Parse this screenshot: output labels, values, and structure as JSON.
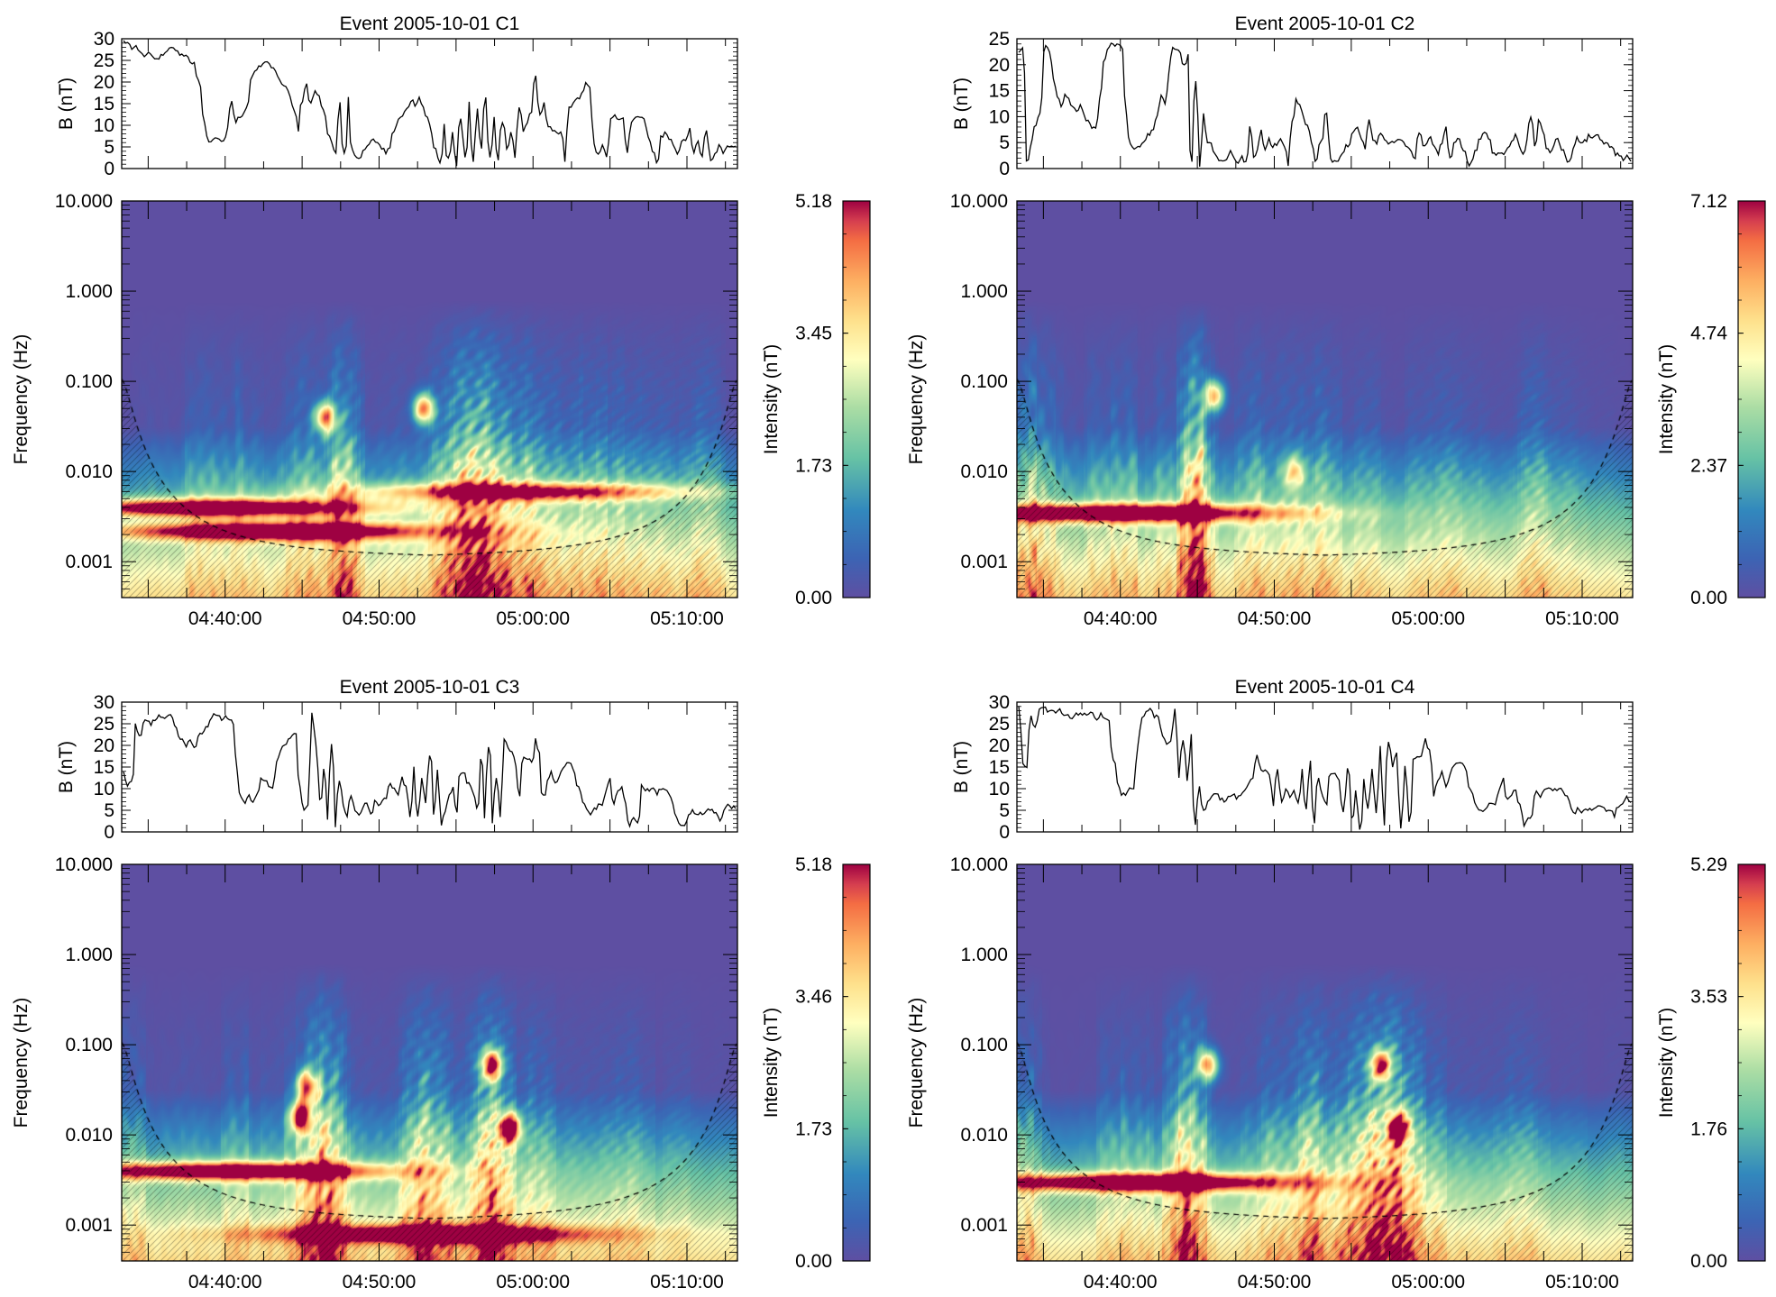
{
  "chart_data": [
    {
      "type": "line+heatmap",
      "id": "C1",
      "title": "Event 2005-10-01 C1",
      "line": {
        "ylabel": "B (nT)",
        "ylim": [
          0,
          30
        ],
        "yticks": [
          "0",
          "5",
          "10",
          "15",
          "20",
          "25",
          "30"
        ],
        "values": [
          29,
          29,
          28,
          28,
          27,
          26,
          27,
          26,
          25,
          26,
          27,
          28,
          28,
          27,
          26,
          26,
          25,
          24,
          20,
          12,
          7,
          6,
          7,
          7,
          6,
          10,
          15,
          11,
          12,
          13,
          15,
          22,
          23,
          24,
          25,
          24,
          23,
          21,
          20,
          19,
          17,
          13,
          9,
          16,
          20,
          15,
          18,
          17,
          13,
          8,
          6,
          4,
          15,
          3,
          16,
          4,
          2,
          3,
          5,
          6,
          7,
          6,
          5,
          4,
          5,
          9,
          11,
          12,
          14,
          16,
          15,
          16,
          14,
          12,
          8,
          4,
          1,
          10,
          2,
          8,
          1,
          12,
          3,
          16,
          2,
          14,
          5,
          16,
          3,
          12,
          2,
          10,
          5,
          8,
          2,
          14,
          8,
          10,
          13,
          22,
          12,
          15,
          10,
          9,
          8,
          8,
          2,
          14,
          15,
          16,
          17,
          20,
          19,
          6,
          3,
          5,
          3,
          11,
          12,
          11,
          12,
          4,
          11,
          12,
          12,
          11,
          7,
          4,
          1,
          7,
          8,
          7,
          5,
          3,
          6,
          7,
          9,
          4,
          6,
          3,
          9,
          2,
          3,
          5,
          4,
          5,
          5,
          5
        ],
        "xlim": [
          "04:33:00",
          "05:13:00"
        ]
      },
      "spectrogram": {
        "ylabel": "Frequency (Hz)",
        "yscale": "log",
        "ylim": [
          0.0004,
          10
        ],
        "yticks": [
          "10.000",
          "1.000",
          "0.100",
          "0.010",
          "0.001"
        ],
        "xticks": [
          "04:40:00",
          "04:50:00",
          "05:00:00",
          "05:10:00"
        ],
        "colorbar": {
          "label": "Intensity (nT)",
          "ticks": [
            "0.00",
            "1.73",
            "3.45",
            "5.18"
          ],
          "min": 0,
          "max": 5.18
        },
        "features": [
          {
            "t": 0.15,
            "f": 0.004,
            "intensity": 5.0,
            "desc": "strong band"
          },
          {
            "t": 0.25,
            "f": 0.0022,
            "intensity": 4.8,
            "desc": "strong band"
          },
          {
            "t": 0.65,
            "f": 0.006,
            "intensity": 3.8,
            "desc": "band"
          },
          {
            "t": 0.33,
            "f": 0.04,
            "intensity": 4.2,
            "desc": "hot spot"
          },
          {
            "t": 0.49,
            "f": 0.05,
            "intensity": 4.3,
            "desc": "hot spot"
          }
        ]
      }
    },
    {
      "type": "line+heatmap",
      "id": "C2",
      "title": "Event 2005-10-01 C2",
      "line": {
        "ylabel": "B (nT)",
        "ylim": [
          0,
          25
        ],
        "yticks": [
          "0",
          "5",
          "10",
          "15",
          "20",
          "25"
        ],
        "values": [
          22,
          23,
          1,
          4,
          8,
          10,
          14,
          24,
          23,
          17,
          14,
          12,
          14,
          13,
          12,
          11,
          12,
          10,
          9,
          8,
          8,
          14,
          20,
          23,
          24,
          24,
          24,
          23,
          10,
          5,
          4,
          4,
          5,
          6,
          7,
          8,
          10,
          14,
          13,
          18,
          23,
          23,
          22,
          20,
          22,
          1,
          17,
          0,
          11,
          5,
          5,
          3,
          2,
          1,
          2,
          3,
          2,
          1,
          2,
          1,
          8,
          2,
          4,
          7,
          3,
          6,
          4,
          5,
          6,
          4,
          1,
          9,
          13,
          12,
          10,
          8,
          5,
          1,
          4,
          6,
          11,
          2,
          1,
          2,
          3,
          4,
          5,
          7,
          8,
          6,
          4,
          9,
          6,
          5,
          7,
          6,
          5,
          5,
          5,
          6,
          5,
          4,
          3,
          2,
          7,
          4,
          5,
          6,
          4,
          3,
          5,
          8,
          2,
          5,
          6,
          4,
          3,
          1,
          2,
          4,
          6,
          7,
          6,
          3,
          3,
          3,
          3,
          4,
          5,
          7,
          4,
          3,
          5,
          10,
          4,
          9,
          8,
          4,
          3,
          5,
          6,
          4,
          2,
          1,
          4,
          6,
          5,
          5,
          6,
          6,
          7,
          6,
          5,
          5,
          4,
          3,
          3,
          2,
          2,
          2
        ],
        "xlim": [
          "04:33:00",
          "05:13:00"
        ]
      },
      "spectrogram": {
        "ylabel": "Frequency (Hz)",
        "yscale": "log",
        "ylim": [
          0.0004,
          10
        ],
        "yticks": [
          "10.000",
          "1.000",
          "0.100",
          "0.010",
          "0.001"
        ],
        "xticks": [
          "04:40:00",
          "04:50:00",
          "05:00:00",
          "05:10:00"
        ],
        "colorbar": {
          "label": "Intensity (nT)",
          "ticks": [
            "0.00",
            "2.37",
            "4.74",
            "7.12"
          ],
          "min": 0,
          "max": 7.12
        },
        "features": [
          {
            "t": 0.17,
            "f": 0.0035,
            "intensity": 7.0,
            "desc": "strong band"
          },
          {
            "t": 0.32,
            "f": 0.07,
            "intensity": 5.0,
            "desc": "hot spot"
          },
          {
            "t": 0.45,
            "f": 0.01,
            "intensity": 3.0,
            "desc": "patch"
          }
        ]
      }
    },
    {
      "type": "line+heatmap",
      "id": "C3",
      "title": "Event 2005-10-01 C3",
      "line": {
        "ylabel": "B (nT)",
        "ylim": [
          0,
          30
        ],
        "yticks": [
          "0",
          "5",
          "10",
          "15",
          "20",
          "25",
          "30"
        ],
        "values": [
          14,
          10,
          12,
          25,
          22,
          25,
          26,
          25,
          26,
          27,
          26,
          27,
          27,
          25,
          22,
          21,
          20,
          21,
          19,
          22,
          23,
          24,
          26,
          27,
          27,
          26,
          27,
          26,
          25,
          14,
          8,
          7,
          8,
          7,
          9,
          12,
          12,
          11,
          10,
          16,
          19,
          20,
          21,
          22,
          23,
          10,
          5,
          6,
          28,
          20,
          7,
          15,
          3,
          20,
          1,
          12,
          6,
          4,
          8,
          5,
          4,
          6,
          7,
          4,
          7,
          6,
          7,
          8,
          11,
          10,
          9,
          13,
          10,
          3,
          15,
          3,
          12,
          7,
          18,
          4,
          14,
          2,
          5,
          8,
          10,
          4,
          14,
          13,
          11,
          9,
          5,
          17,
          3,
          20,
          2,
          12,
          3,
          21,
          19,
          18,
          15,
          8,
          17,
          17,
          16,
          22,
          18,
          8,
          12,
          14,
          11,
          13,
          15,
          16,
          16,
          14,
          10,
          7,
          5,
          4,
          5,
          7,
          6,
          10,
          12,
          7,
          9,
          10,
          6,
          1,
          3,
          2,
          11,
          10,
          10,
          10,
          9,
          10,
          10,
          9,
          7,
          3,
          1,
          2,
          4,
          5,
          4,
          4,
          4,
          5,
          5,
          4,
          3,
          5,
          6,
          6,
          6
        ],
        "xlim": [
          "04:33:00",
          "05:13:00"
        ]
      },
      "spectrogram": {
        "ylabel": "Frequency (Hz)",
        "yscale": "log",
        "ylim": [
          0.0004,
          10
        ],
        "yticks": [
          "10.000",
          "1.000",
          "0.100",
          "0.010",
          "0.001"
        ],
        "xticks": [
          "04:40:00",
          "04:50:00",
          "05:00:00",
          "05:10:00"
        ],
        "colorbar": {
          "label": "Intensity (nT)",
          "ticks": [
            "0.00",
            "1.73",
            "3.46",
            "5.18"
          ],
          "min": 0,
          "max": 5.18
        },
        "features": [
          {
            "t": 0.18,
            "f": 0.004,
            "intensity": 5.0,
            "desc": "strong band"
          },
          {
            "t": 0.29,
            "f": 0.016,
            "intensity": 4.8,
            "desc": "hot spot"
          },
          {
            "t": 0.3,
            "f": 0.035,
            "intensity": 4.0,
            "desc": "hot spot"
          },
          {
            "t": 0.63,
            "f": 0.012,
            "intensity": 4.8,
            "desc": "hot spot"
          },
          {
            "t": 0.6,
            "f": 0.06,
            "intensity": 4.5,
            "desc": "hot spot"
          },
          {
            "t": 0.5,
            "f": 0.0008,
            "intensity": 3.8,
            "desc": "low-frequency band"
          }
        ]
      }
    },
    {
      "type": "line+heatmap",
      "id": "C4",
      "title": "Event 2005-10-01 C4",
      "line": {
        "ylabel": "B (nT)",
        "ylim": [
          0,
          30
        ],
        "yticks": [
          "0",
          "5",
          "10",
          "15",
          "20",
          "25",
          "30"
        ],
        "values": [
          29,
          16,
          15,
          27,
          24,
          28,
          29,
          28,
          28,
          28,
          28,
          27,
          27,
          26,
          27,
          27,
          27,
          27,
          28,
          26,
          27,
          26,
          26,
          17,
          11,
          9,
          9,
          10,
          10,
          20,
          26,
          28,
          28,
          27,
          27,
          22,
          20,
          21,
          28,
          13,
          21,
          12,
          23,
          2,
          11,
          5,
          7,
          8,
          9,
          8,
          7,
          8,
          9,
          8,
          9,
          10,
          11,
          13,
          18,
          14,
          14,
          13,
          6,
          14,
          7,
          10,
          8,
          9,
          7,
          15,
          5,
          16,
          2,
          12,
          8,
          6,
          14,
          13,
          12,
          5,
          15,
          3,
          9,
          1,
          12,
          5,
          15,
          4,
          20,
          2,
          21,
          15,
          18,
          1,
          15,
          2,
          17,
          17,
          18,
          22,
          19,
          8,
          12,
          14,
          11,
          13,
          15,
          16,
          16,
          14,
          10,
          7,
          5,
          5,
          6,
          7,
          6,
          10,
          12,
          7,
          9,
          10,
          6,
          1,
          3,
          4,
          10,
          8,
          10,
          10,
          10,
          10,
          10,
          9,
          7,
          4,
          5,
          5,
          5,
          5,
          5,
          6,
          6,
          5,
          5,
          4,
          6,
          7,
          8,
          7
        ],
        "xlim": [
          "04:33:00",
          "05:13:00"
        ]
      },
      "spectrogram": {
        "ylabel": "Frequency (Hz)",
        "yscale": "log",
        "ylim": [
          0.0004,
          10
        ],
        "yticks": [
          "10.000",
          "1.000",
          "0.100",
          "0.010",
          "0.001"
        ],
        "xticks": [
          "04:40:00",
          "04:50:00",
          "05:00:00",
          "05:10:00"
        ],
        "colorbar": {
          "label": "Intensity (nT)",
          "ticks": [
            "0.00",
            "1.76",
            "3.53",
            "5.29"
          ],
          "min": 0,
          "max": 5.29
        },
        "features": [
          {
            "t": 0.2,
            "f": 0.003,
            "intensity": 5.2,
            "desc": "strong band"
          },
          {
            "t": 0.31,
            "f": 0.06,
            "intensity": 4.0,
            "desc": "hot spot"
          },
          {
            "t": 0.59,
            "f": 0.06,
            "intensity": 4.2,
            "desc": "hot spot"
          },
          {
            "t": 0.62,
            "f": 0.012,
            "intensity": 4.0,
            "desc": "hot spot"
          }
        ]
      }
    }
  ]
}
